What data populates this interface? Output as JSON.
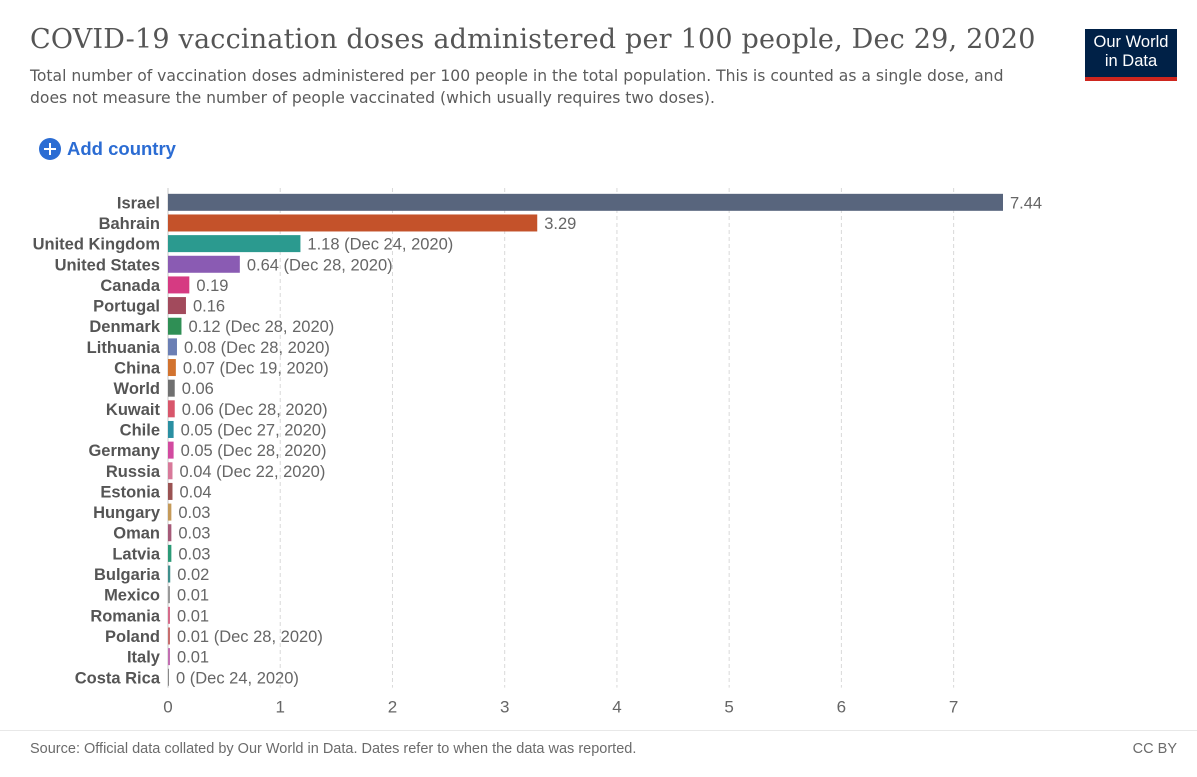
{
  "header": {
    "title": "COVID-19 vaccination doses administered per 100 people, Dec 29, 2020",
    "subtitle": "Total number of vaccination doses administered per 100 people in the total population. This is counted as a single dose, and does not measure the number of people vaccinated (which usually requires two doses).",
    "logo_line1": "Our World",
    "logo_line2": "in Data"
  },
  "controls": {
    "add_country_label": "Add country",
    "add_icon": "plus-circle-icon"
  },
  "footer": {
    "source": "Source: Official data collated by Our World in Data. Dates refer to when the data was reported.",
    "license": "CC BY"
  },
  "colors": {
    "logo_bg": "#002147",
    "logo_accent": "#ce261e",
    "link": "#2b6cd3"
  },
  "chart_data": {
    "type": "bar",
    "orientation": "horizontal",
    "xlim": [
      0,
      7.44
    ],
    "xticks": [
      0,
      1,
      2,
      3,
      4,
      5,
      6,
      7
    ],
    "grid": "vertical dashed",
    "categories": [
      "Israel",
      "Bahrain",
      "United Kingdom",
      "United States",
      "Canada",
      "Portugal",
      "Denmark",
      "Lithuania",
      "China",
      "World",
      "Kuwait",
      "Chile",
      "Germany",
      "Russia",
      "Estonia",
      "Hungary",
      "Oman",
      "Latvia",
      "Bulgaria",
      "Mexico",
      "Romania",
      "Poland",
      "Italy",
      "Costa Rica"
    ],
    "values": [
      7.44,
      3.29,
      1.18,
      0.64,
      0.19,
      0.16,
      0.12,
      0.08,
      0.07,
      0.06,
      0.06,
      0.05,
      0.05,
      0.04,
      0.04,
      0.03,
      0.03,
      0.03,
      0.02,
      0.01,
      0.01,
      0.01,
      0.01,
      0
    ],
    "value_labels": [
      "7.44",
      "3.29",
      "1.18 (Dec 24, 2020)",
      "0.64 (Dec 28, 2020)",
      "0.19",
      "0.16",
      "0.12 (Dec 28, 2020)",
      "0.08 (Dec 28, 2020)",
      "0.07 (Dec 19, 2020)",
      "0.06",
      "0.06 (Dec 28, 2020)",
      "0.05 (Dec 27, 2020)",
      "0.05 (Dec 28, 2020)",
      "0.04 (Dec 22, 2020)",
      "0.04",
      "0.03",
      "0.03",
      "0.03",
      "0.02",
      "0.01",
      "0.01",
      "0.01 (Dec 28, 2020)",
      "0.01",
      "0 (Dec 24, 2020)"
    ],
    "bar_colors": [
      "#58657d",
      "#c4522a",
      "#2b9a8f",
      "#8a5bb3",
      "#d63a82",
      "#a24a5c",
      "#2f8f55",
      "#6b7fb4",
      "#d2732f",
      "#707070",
      "#d8566b",
      "#2a8fa2",
      "#d24aa0",
      "#d8799a",
      "#9a5252",
      "#c59a59",
      "#a55a78",
      "#2b9a77",
      "#3f8f8c",
      "#9a9a9a",
      "#d66b8a",
      "#c76e6e",
      "#c26fb2",
      "#888888"
    ]
  }
}
